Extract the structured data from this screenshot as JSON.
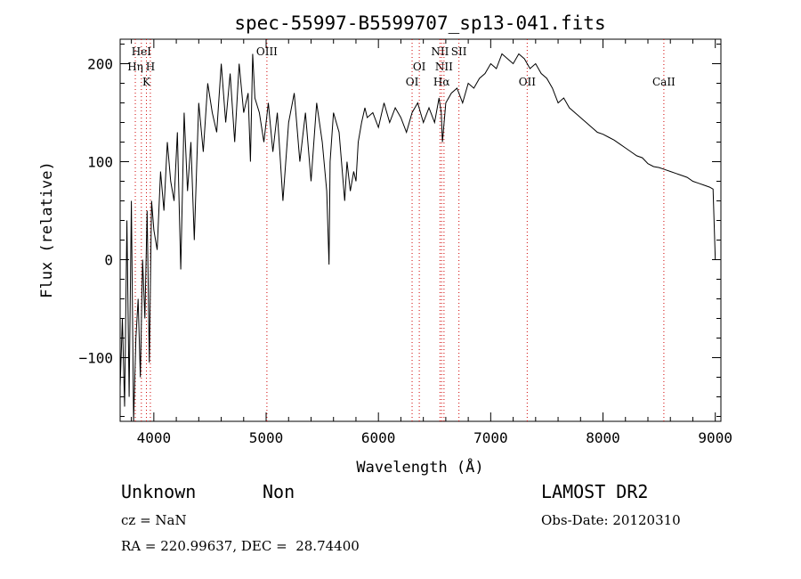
{
  "chart_data": {
    "type": "line",
    "title": "spec-55997-B5599707_sp13-041.fits",
    "xlabel": "Wavelength (Å)",
    "ylabel": "Flux (relative)",
    "xlim": [
      3700,
      9050
    ],
    "ylim": [
      -165,
      225
    ],
    "x_ticks": [
      4000,
      5000,
      6000,
      7000,
      8000,
      9000
    ],
    "y_ticks": [
      -100,
      0,
      100,
      200
    ],
    "grid": false,
    "series": [
      {
        "x": [
          3700,
          3720,
          3740,
          3760,
          3780,
          3800,
          3820,
          3840,
          3860,
          3880,
          3900,
          3920,
          3940,
          3960,
          3980,
          4000,
          4030,
          4060,
          4090,
          4120,
          4150,
          4180,
          4210,
          4240,
          4270,
          4300,
          4330,
          4360,
          4400,
          4440,
          4480,
          4520,
          4560,
          4600,
          4640,
          4680,
          4720,
          4760,
          4800,
          4840,
          4860,
          4880,
          4900,
          4940,
          4980,
          5020,
          5060,
          5100,
          5150,
          5200,
          5250,
          5300,
          5350,
          5400,
          5450,
          5500,
          5540,
          5560,
          5570,
          5600,
          5650,
          5700,
          5720,
          5750,
          5780,
          5800,
          5820,
          5850,
          5880,
          5900,
          5950,
          6000,
          6050,
          6100,
          6150,
          6200,
          6250,
          6300,
          6350,
          6400,
          6450,
          6500,
          6540,
          6560,
          6570,
          6600,
          6650,
          6700,
          6750,
          6800,
          6850,
          6900,
          6950,
          7000,
          7050,
          7100,
          7150,
          7200,
          7250,
          7300,
          7350,
          7400,
          7450,
          7500,
          7550,
          7600,
          7650,
          7700,
          7750,
          7800,
          7850,
          7900,
          7950,
          8000,
          8050,
          8100,
          8150,
          8200,
          8250,
          8300,
          8350,
          8400,
          8450,
          8500,
          8550,
          8600,
          8650,
          8700,
          8750,
          8800,
          8850,
          8900,
          8950,
          8980,
          9000
        ],
        "y": [
          -130,
          -60,
          -150,
          40,
          -140,
          60,
          -165,
          -80,
          -40,
          -120,
          0,
          -60,
          50,
          -105,
          60,
          30,
          10,
          90,
          50,
          120,
          80,
          60,
          130,
          -10,
          150,
          70,
          120,
          20,
          160,
          110,
          180,
          150,
          130,
          200,
          140,
          190,
          120,
          200,
          150,
          170,
          100,
          210,
          165,
          150,
          120,
          160,
          110,
          150,
          60,
          140,
          170,
          100,
          150,
          80,
          160,
          120,
          70,
          -5,
          100,
          150,
          130,
          60,
          100,
          70,
          90,
          80,
          120,
          140,
          155,
          145,
          150,
          135,
          160,
          140,
          155,
          145,
          130,
          150,
          160,
          140,
          155,
          140,
          165,
          150,
          120,
          160,
          170,
          175,
          160,
          180,
          175,
          185,
          190,
          200,
          195,
          210,
          205,
          200,
          210,
          205,
          195,
          200,
          190,
          185,
          175,
          160,
          165,
          155,
          150,
          145,
          140,
          135,
          130,
          128,
          125,
          122,
          118,
          114,
          110,
          106,
          104,
          98,
          95,
          94,
          92,
          90,
          88,
          86,
          84,
          80,
          78,
          76,
          74,
          72,
          0
        ]
      }
    ],
    "line_labels": [
      {
        "text": "HeI",
        "x": 3889
      },
      {
        "text": "Hη",
        "x": 3835
      },
      {
        "text": "H",
        "x": 3969
      },
      {
        "text": "K",
        "x": 3934
      },
      {
        "text": "OIII",
        "x": 5007
      },
      {
        "text": "OI",
        "x": 6364
      },
      {
        "text": "OI",
        "x": 6300
      },
      {
        "text": "NII",
        "x": 6548
      },
      {
        "text": "NII",
        "x": 6584
      },
      {
        "text": "Hα",
        "x": 6563
      },
      {
        "text": "SII",
        "x": 6717
      },
      {
        "text": "OII",
        "x": 7325
      },
      {
        "text": "CaII",
        "x": 8542
      }
    ]
  },
  "info": {
    "class": "Unknown",
    "subclass": "Non",
    "survey": "LAMOST DR2",
    "cz": "cz = NaN",
    "obs_date": "Obs-Date: 20120310",
    "coords": "RA = 220.99637, DEC =  28.74400"
  },
  "colors": {
    "spectrum": "#000000",
    "line_marker": "#d00000",
    "axis": "#000000"
  }
}
